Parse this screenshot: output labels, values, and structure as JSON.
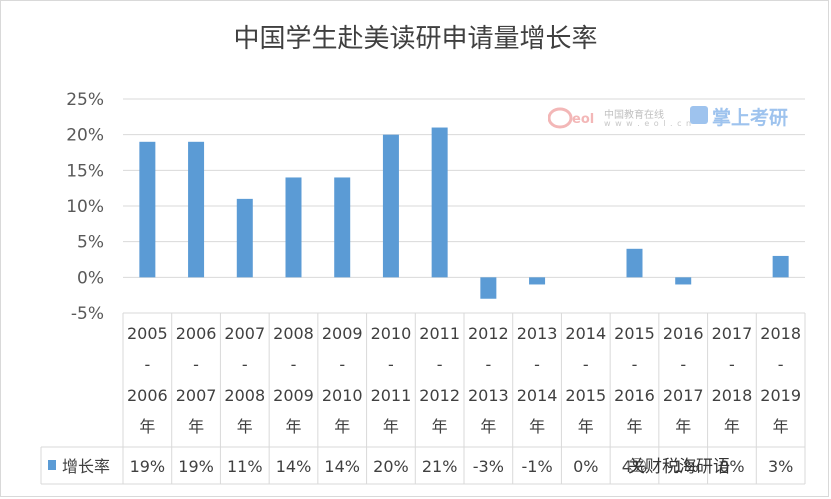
{
  "chart_data": {
    "type": "bar",
    "title": "中国学生赴美读研申请量增长率",
    "categories": [
      [
        "2005",
        "-",
        "2006",
        "年"
      ],
      [
        "2006",
        "-",
        "2007",
        "年"
      ],
      [
        "2007",
        "-",
        "2008",
        "年"
      ],
      [
        "2008",
        "-",
        "2009",
        "年"
      ],
      [
        "2009",
        "-",
        "2010",
        "年"
      ],
      [
        "2010",
        "-",
        "2011",
        "年"
      ],
      [
        "2011",
        "-",
        "2012",
        "年"
      ],
      [
        "2012",
        "-",
        "2013",
        "年"
      ],
      [
        "2013",
        "-",
        "2014",
        "年"
      ],
      [
        "2014",
        "-",
        "2015",
        "年"
      ],
      [
        "2015",
        "-",
        "2016",
        "年"
      ],
      [
        "2016",
        "-",
        "2017",
        "年"
      ],
      [
        "2017",
        "-",
        "2018",
        "年"
      ],
      [
        "2018",
        "-",
        "2019",
        "年"
      ]
    ],
    "series": [
      {
        "name": "增长率",
        "values": [
          19,
          19,
          11,
          14,
          14,
          20,
          21,
          -3,
          -1,
          0,
          4,
          -1,
          0,
          3
        ],
        "labels": [
          "19%",
          "19%",
          "11%",
          "14%",
          "14%",
          "20%",
          "21%",
          "-3%",
          "-1%",
          "0%",
          "4%",
          "-1%",
          "0%",
          "3%"
        ],
        "color": "#5b9bd5"
      }
    ],
    "yticks": [
      "25%",
      "20%",
      "15%",
      "10%",
      "5%",
      "0%",
      "-5%"
    ],
    "ylim": [
      -5,
      25
    ],
    "grid": true,
    "legend": "data-table"
  },
  "watermark": {
    "brand": "中国教育在线",
    "domain": "w w w . e o l . c n",
    "logo_text": "eol",
    "partner": "掌上考研"
  },
  "footer": {
    "account": "关财税海研语"
  }
}
